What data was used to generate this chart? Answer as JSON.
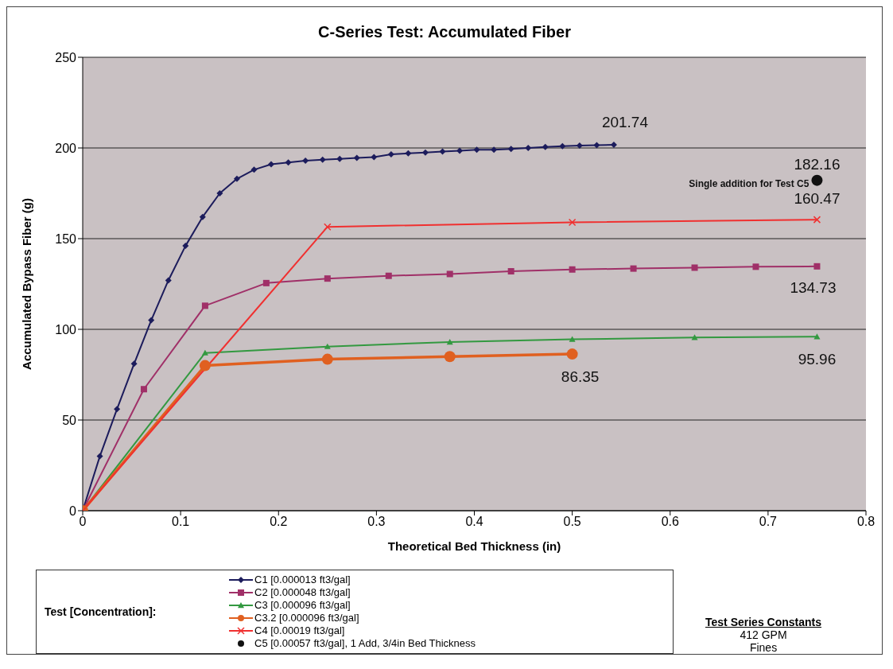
{
  "chart_data": {
    "type": "line",
    "title": "C-Series Test: Accumulated Fiber",
    "xlabel": "Theoretical Bed Thickness (in)",
    "ylabel": "Accumulated Bypass Fiber (g)",
    "legend_title": "Test [Concentration]:",
    "xlim": [
      0,
      0.8
    ],
    "xticks": [
      0,
      0.1,
      0.2,
      0.3,
      0.4,
      0.5,
      0.6,
      0.7,
      0.8
    ],
    "ylim": [
      0,
      250
    ],
    "yticks": [
      0,
      50,
      100,
      150,
      200,
      250
    ],
    "grid": "y",
    "legend": "bottom",
    "line_style": "solid",
    "series": [
      {
        "name": "C1 [0.000013 ft3/gal]",
        "color": "#1c1c5c",
        "marker": "diamond",
        "x": [
          0,
          0.0175,
          0.035,
          0.0525,
          0.07,
          0.0875,
          0.105,
          0.1225,
          0.14,
          0.1575,
          0.175,
          0.1925,
          0.21,
          0.2275,
          0.245,
          0.2625,
          0.28,
          0.2975,
          0.315,
          0.3325,
          0.35,
          0.3675,
          0.385,
          0.4025,
          0.42,
          0.4375,
          0.455,
          0.4725,
          0.49,
          0.5075,
          0.525,
          0.5425
        ],
        "values": [
          0,
          30,
          56,
          81,
          105,
          127,
          146,
          162,
          175,
          183,
          188,
          191,
          192,
          193,
          193.5,
          194,
          194.5,
          195,
          196.5,
          197,
          197.5,
          198,
          198.5,
          199,
          199,
          199.5,
          200,
          200.5,
          201,
          201.3,
          201.5,
          201.74
        ]
      },
      {
        "name": "C2 [0.000048 ft3/gal]",
        "color": "#a03068",
        "marker": "square",
        "x": [
          0,
          0.0625,
          0.125,
          0.1875,
          0.25,
          0.3125,
          0.375,
          0.4375,
          0.5,
          0.5625,
          0.625,
          0.6875,
          0.75
        ],
        "values": [
          0,
          67,
          113,
          125.5,
          128,
          129.5,
          130.5,
          132,
          133,
          133.5,
          134,
          134.5,
          134.73
        ]
      },
      {
        "name": "C3 [0.000096 ft3/gal]",
        "color": "#339940",
        "marker": "triangle",
        "x": [
          0,
          0.125,
          0.25,
          0.375,
          0.5,
          0.625,
          0.75
        ],
        "values": [
          0,
          87,
          90.5,
          93,
          94.5,
          95.5,
          95.96
        ]
      },
      {
        "name": "C3.2 [0.000096 ft3/gal]",
        "color": "#e06020",
        "marker": "circle",
        "x": [
          0,
          0.125,
          0.25,
          0.375,
          0.5
        ],
        "values": [
          0,
          80,
          83.5,
          85,
          86.35
        ]
      },
      {
        "name": "C4 [0.00019 ft3/gal]",
        "color": "#f03030",
        "marker": "cross",
        "x": [
          0,
          0.25,
          0.5,
          0.75
        ],
        "values": [
          0,
          156.5,
          159,
          160.47
        ]
      },
      {
        "name": "C5 [0.00057 ft3/gal], 1 Add, 3/4in Bed Thickness",
        "type": "scatter",
        "color": "#111111",
        "marker": "circle",
        "x": [
          0.75
        ],
        "values": [
          182.16
        ]
      }
    ],
    "annotations": [
      {
        "text": "201.74",
        "x": 0.5425,
        "y": 201.74
      },
      {
        "text": "182.16",
        "x": 0.75,
        "y": 182.16
      },
      {
        "text": "Single addition for Test C5",
        "x": 0.75,
        "y": 182.16
      },
      {
        "text": "160.47",
        "x": 0.75,
        "y": 160.47
      },
      {
        "text": "134.73",
        "x": 0.75,
        "y": 134.73
      },
      {
        "text": "95.96",
        "x": 0.75,
        "y": 95.96
      },
      {
        "text": "86.35",
        "x": 0.5,
        "y": 86.35
      },
      "Test Series Constants",
      "412 GPM",
      "Fines"
    ]
  }
}
